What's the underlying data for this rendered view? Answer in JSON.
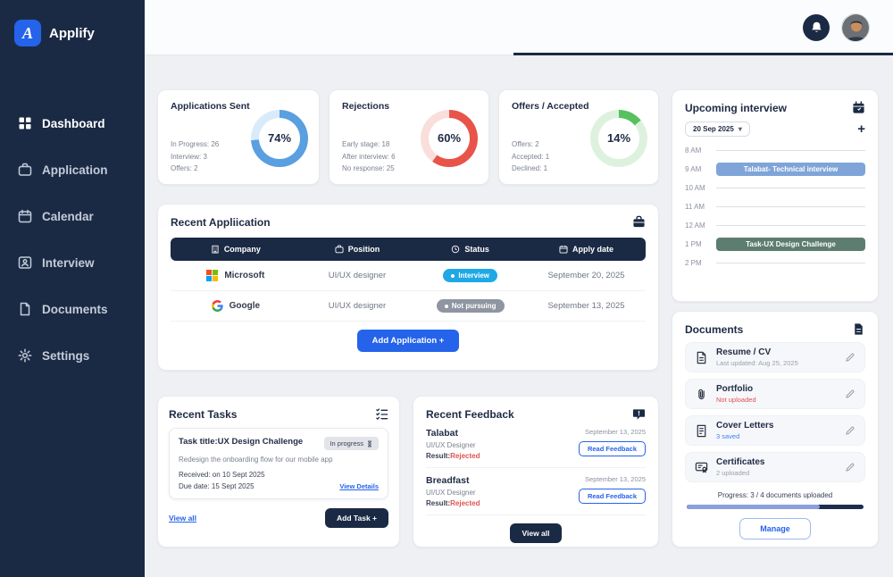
{
  "brand": {
    "name": "Applify",
    "logo_letter": "A"
  },
  "sidebar": {
    "items": [
      {
        "label": "Dashboard",
        "icon": "grid-icon",
        "active": true
      },
      {
        "label": "Application",
        "icon": "briefcase-icon",
        "active": false
      },
      {
        "label": "Calendar",
        "icon": "calendar-icon",
        "active": false
      },
      {
        "label": "Interview",
        "icon": "person-card-icon",
        "active": false
      },
      {
        "label": "Documents",
        "icon": "document-icon",
        "active": false
      },
      {
        "label": "Settings",
        "icon": "gear-icon",
        "active": false
      }
    ]
  },
  "header": {
    "icons": [
      "bell-icon",
      "avatar"
    ]
  },
  "stats": [
    {
      "title": "Applications Sent",
      "percent": "74%",
      "value": 74,
      "color": "#5a9fe0",
      "track": "#d9eafb",
      "lines": [
        "In Progress: 26",
        "Interview: 3",
        "Offers: 2"
      ]
    },
    {
      "title": "Rejections",
      "percent": "60%",
      "value": 60,
      "color": "#e8544a",
      "track": "#fadedb",
      "lines": [
        "Early stage: 18",
        "After interview: 6",
        "No response: 25"
      ]
    },
    {
      "title": "Offers / Accepted",
      "percent": "14%",
      "value": 14,
      "color": "#57c15f",
      "track": "#ddf2de",
      "lines": [
        "Offers: 2",
        "Accepted: 1",
        "Declined: 1"
      ]
    }
  ],
  "upcoming": {
    "title": "Upcoming interview",
    "icon": "calendar-badge-icon",
    "date_select": "20 Sep 2025",
    "add_label": "+",
    "slots": [
      {
        "time": "8 AM",
        "event": null
      },
      {
        "time": "9 AM",
        "event": {
          "label": "Talabat- Technical interview",
          "color": "#7fa5d8"
        }
      },
      {
        "time": "10 AM",
        "event": null
      },
      {
        "time": "11 AM",
        "event": null
      },
      {
        "time": "12 AM",
        "event": null
      },
      {
        "time": "1 PM",
        "event": {
          "label": "Task-UX Design Challenge",
          "color": "#5c7d70"
        }
      },
      {
        "time": "2 PM",
        "event": null
      }
    ]
  },
  "recent_applications": {
    "title": "Recent Appliication",
    "icon": "briefcase-badge-icon",
    "columns": [
      "Company",
      "Position",
      "Status",
      "Apply date"
    ],
    "rows": [
      {
        "company": "Microsoft",
        "logo": "microsoft-logo",
        "position": "UI/UX designer",
        "status": "Interview",
        "status_color": "#1fa8e5",
        "date": "September 20, 2025"
      },
      {
        "company": "Google",
        "logo": "google-logo",
        "position": "UI/UX designer",
        "status": "Not pursuing",
        "status_color": "#8f96a1",
        "date": "September 13, 2025"
      }
    ],
    "add_button": "Add Application +"
  },
  "recent_tasks": {
    "title": "Recent Tasks",
    "icon": "tasklist-icon",
    "task": {
      "title": "Task title:UX Design Challenge",
      "badge": "In progress",
      "badge_icon": "hourglass-icon",
      "description": "Redesign the onboarding flow for our mobile app",
      "received": "Received: on 10 Sept 2025",
      "due": "Due date: 15 Sept 2025",
      "details_link": "View Details"
    },
    "view_all": "View all",
    "add_task": "Add Task +"
  },
  "recent_feedback": {
    "title": "Recent Feedback",
    "icon": "chat-icon",
    "items": [
      {
        "company": "Talabat",
        "role": "UI/UX Designer",
        "result_label": "Result:",
        "result": "Rejected",
        "result_color": "#e05252",
        "date": "September 13, 2025",
        "action": "Read Feedback"
      },
      {
        "company": "Breadfast",
        "role": "UI/UX Designer",
        "result_label": "Result:",
        "result": "Rejected",
        "result_color": "#e05252",
        "date": "September 13, 2025",
        "action": "Read Feedback"
      }
    ],
    "view_all": "View all"
  },
  "documents": {
    "title": "Documents",
    "icon": "document-badge-icon",
    "items": [
      {
        "name": "Resume / CV",
        "meta": "Last updated: Aug 25, 2025",
        "meta_color": "#9aa1ab",
        "icon": "resume-icon"
      },
      {
        "name": "Portfolio",
        "meta": "Not uploaded",
        "meta_color": "#e05252",
        "icon": "paperclip-icon"
      },
      {
        "name": "Cover Letters",
        "meta": "3 saved",
        "meta_color": "#3b82f6",
        "icon": "letters-icon"
      },
      {
        "name": "Certificates",
        "meta": "2 uploaded",
        "meta_color": "#9aa1ab",
        "icon": "certificate-icon"
      }
    ],
    "progress_text": "Progress: 3 / 4 documents uploaded",
    "progress_value": 75,
    "progress_fill_color": "#8aa0dd",
    "progress_track_color": "#1f2d4d",
    "manage_button": "Manage"
  },
  "colors": {
    "sidebar": "#1b2a44",
    "accent_blue": "#2563eb",
    "background": "#eef0f3"
  }
}
